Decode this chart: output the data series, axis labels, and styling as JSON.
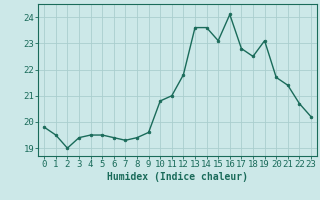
{
  "x": [
    0,
    1,
    2,
    3,
    4,
    5,
    6,
    7,
    8,
    9,
    10,
    11,
    12,
    13,
    14,
    15,
    16,
    17,
    18,
    19,
    20,
    21,
    22,
    23
  ],
  "y": [
    19.8,
    19.5,
    19.0,
    19.4,
    19.5,
    19.5,
    19.4,
    19.3,
    19.4,
    19.6,
    20.8,
    21.0,
    21.8,
    23.6,
    23.6,
    23.1,
    24.1,
    22.8,
    22.5,
    23.1,
    21.7,
    21.4,
    20.7,
    20.2
  ],
  "line_color": "#1a6b5a",
  "marker": "o",
  "markersize": 2.0,
  "linewidth": 1.0,
  "bg_color": "#cce8e8",
  "grid_color": "#aacece",
  "xlabel": "Humidex (Indice chaleur)",
  "xlabel_fontsize": 7,
  "tick_fontsize": 6.5,
  "ylim": [
    18.7,
    24.5
  ],
  "yticks": [
    19,
    20,
    21,
    22,
    23,
    24
  ],
  "xticks": [
    0,
    1,
    2,
    3,
    4,
    5,
    6,
    7,
    8,
    9,
    10,
    11,
    12,
    13,
    14,
    15,
    16,
    17,
    18,
    19,
    20,
    21,
    22,
    23
  ],
  "tick_color": "#1a6b5a",
  "axis_color": "#1a6b5a",
  "spine_color": "#1a6b5a"
}
